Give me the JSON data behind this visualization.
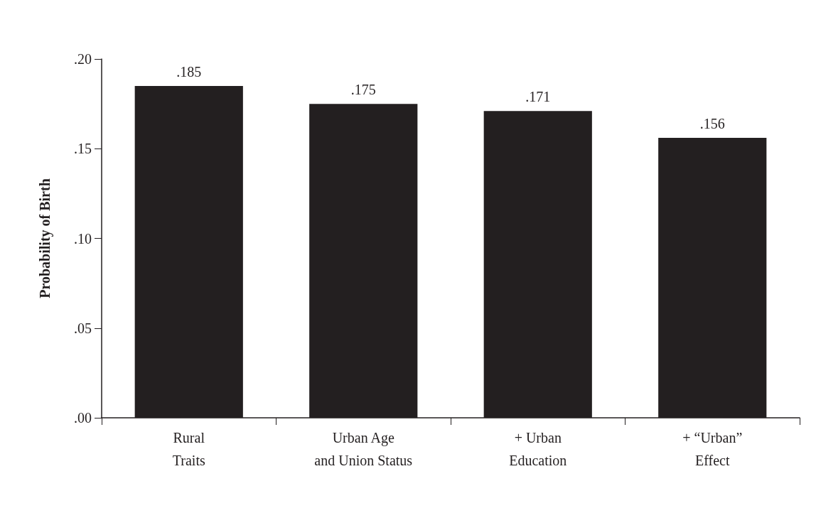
{
  "chart_data": {
    "type": "bar",
    "ylabel": "Probability of Birth",
    "categories": [
      "Rural\nTraits",
      "Urban Age\nand Union Status",
      "+ Urban\nEducation",
      "+ “Urban”\nEffect"
    ],
    "values": [
      0.185,
      0.175,
      0.171,
      0.156
    ],
    "value_labels": [
      ".185",
      ".175",
      ".171",
      ".156"
    ],
    "color": "#231f20",
    "ylim": [
      0,
      0.2
    ],
    "yticks": [
      {
        "value": 0,
        "label": ".00"
      },
      {
        "value": 0.05,
        "label": ".05"
      },
      {
        "value": 0.1,
        "label": ".10"
      },
      {
        "value": 0.15,
        "label": ".15"
      },
      {
        "value": 0.2,
        "label": ".20"
      }
    ],
    "grid": false
  }
}
